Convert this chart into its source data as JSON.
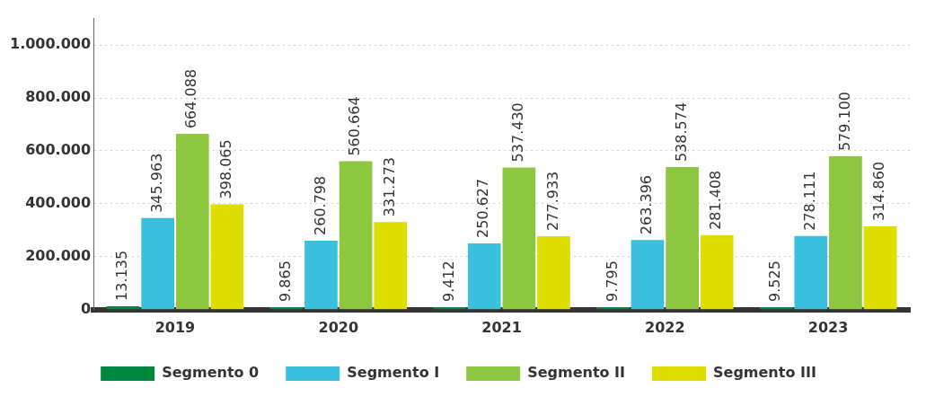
{
  "chart_data": {
    "type": "bar",
    "categories": [
      "2019",
      "2020",
      "2021",
      "2022",
      "2023"
    ],
    "series": [
      {
        "name": "Segmento 0",
        "color": "#00873e",
        "values": [
          13135,
          9865,
          9412,
          9795,
          9525
        ],
        "value_labels": [
          "13.135",
          "9.865",
          "9.412",
          "9.795",
          "9.525"
        ]
      },
      {
        "name": "Segmento I",
        "color": "#3bbfdf",
        "values": [
          345963,
          260798,
          250627,
          263396,
          278111
        ],
        "value_labels": [
          "345.963",
          "260.798",
          "250.627",
          "263.396",
          "278.111"
        ]
      },
      {
        "name": "Segmento II",
        "color": "#8dc63f",
        "values": [
          664088,
          560664,
          537430,
          538574,
          579100
        ],
        "value_labels": [
          "664.088",
          "560.664",
          "537.430",
          "538.574",
          "579.100"
        ]
      },
      {
        "name": "Segmento III",
        "color": "#dede00",
        "values": [
          398065,
          331273,
          277933,
          281408,
          314860
        ],
        "value_labels": [
          "398.065",
          "331.273",
          "277.933",
          "281.408",
          "314.860"
        ]
      }
    ],
    "ylim": [
      0,
      1100000
    ],
    "yticks": [
      {
        "value": 0,
        "label": "0"
      },
      {
        "value": 200000,
        "label": "200.000"
      },
      {
        "value": 400000,
        "label": "400.000"
      },
      {
        "value": 600000,
        "label": "600.000"
      },
      {
        "value": 800000,
        "label": "800.000"
      },
      {
        "value": 1000000,
        "label": "1.000.000"
      }
    ],
    "grid": "y",
    "legend": "bottom"
  }
}
